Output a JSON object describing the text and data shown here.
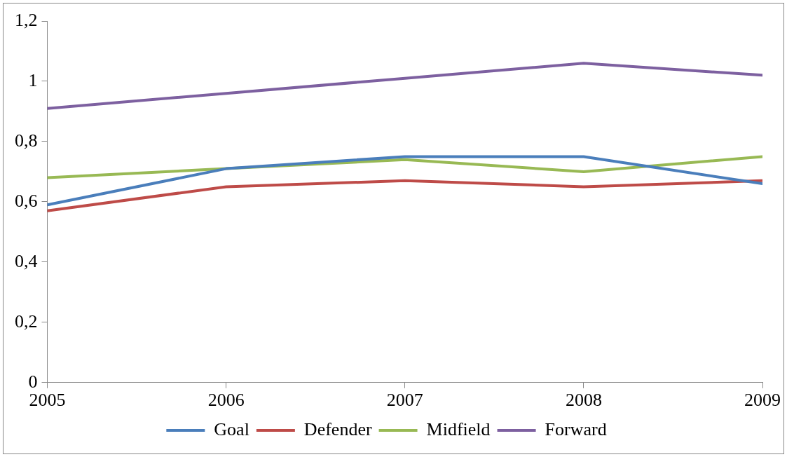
{
  "chart_data": {
    "type": "line",
    "x": [
      2005,
      2006,
      2007,
      2008,
      2009
    ],
    "xlim": [
      2005,
      2009
    ],
    "xticks": [
      2005,
      2006,
      2007,
      2008,
      2009
    ],
    "ylim": [
      0,
      1.2
    ],
    "yticks": [
      0,
      {
        "value": 0.2,
        "label": "0,2"
      },
      {
        "value": 0.4,
        "label": "0,4"
      },
      {
        "value": 0.6,
        "label": "0,6"
      },
      {
        "value": 0.8,
        "label": "0,8"
      },
      1,
      {
        "value": 1.2,
        "label": "1,2"
      }
    ],
    "grid": false,
    "legend": "bottom",
    "marker": "none",
    "line_style": "solid",
    "series": [
      {
        "name": "Goal",
        "color": "#4a7ebb",
        "values": [
          0.59,
          0.71,
          0.75,
          0.75,
          0.66
        ]
      },
      {
        "name": "Defender",
        "color": "#be4b48",
        "values": [
          0.57,
          0.65,
          0.67,
          0.65,
          0.67
        ]
      },
      {
        "name": "Midfield",
        "color": "#98b954",
        "values": [
          0.68,
          0.71,
          0.74,
          0.7,
          0.75
        ]
      },
      {
        "name": "Forward",
        "color": "#7d60a0",
        "values": [
          0.91,
          0.96,
          1.01,
          1.06,
          1.02
        ]
      }
    ]
  }
}
